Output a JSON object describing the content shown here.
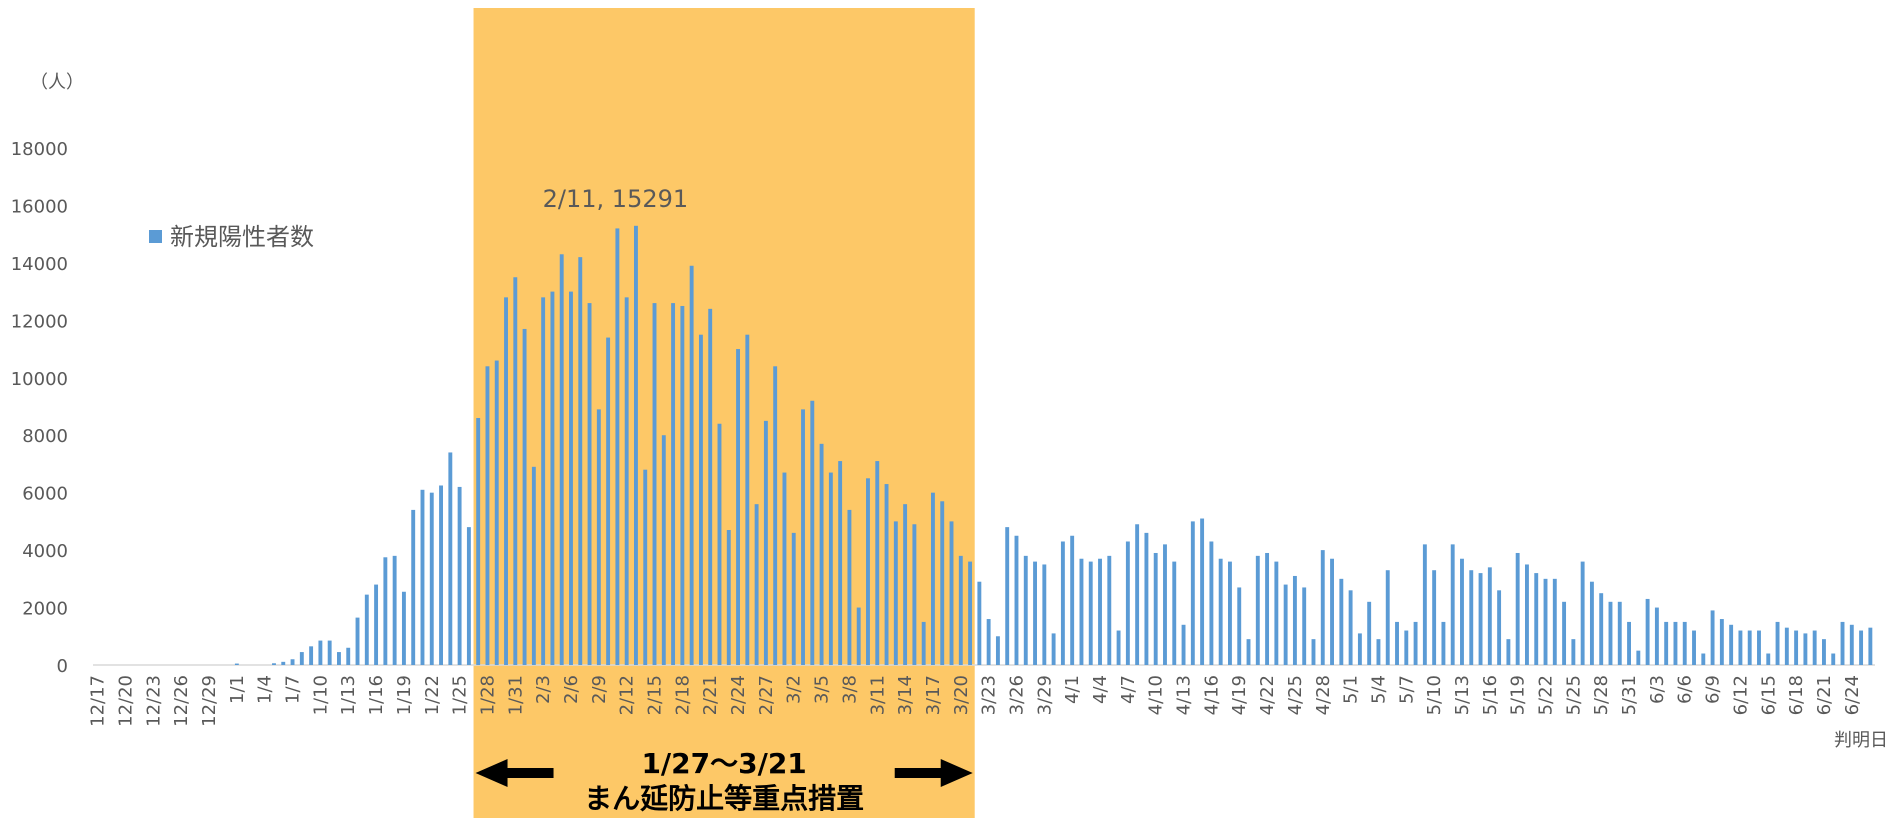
{
  "chart_data": {
    "type": "bar",
    "title": "",
    "ylabel": "（人）",
    "xlabel": "判明日",
    "ylim": [
      0,
      18000
    ],
    "yticks": [
      0,
      2000,
      4000,
      6000,
      8000,
      10000,
      12000,
      14000,
      16000,
      18000
    ],
    "legend": {
      "label": "新規陽性者数",
      "position": "upper-left"
    },
    "x_start": "12/17",
    "x_end": "6/24",
    "xtick_labels": [
      "12/17",
      "12/20",
      "12/23",
      "12/26",
      "12/29",
      "1/1",
      "1/4",
      "1/7",
      "1/10",
      "1/13",
      "1/16",
      "1/19",
      "1/22",
      "1/25",
      "1/28",
      "1/31",
      "2/3",
      "2/6",
      "2/9",
      "2/12",
      "2/15",
      "2/18",
      "2/21",
      "2/24",
      "2/27",
      "3/2",
      "3/5",
      "3/8",
      "3/11",
      "3/14",
      "3/17",
      "3/20",
      "3/23",
      "3/26",
      "3/29",
      "4/1",
      "4/4",
      "4/7",
      "4/10",
      "4/13",
      "4/16",
      "4/19",
      "4/22",
      "4/25",
      "4/28",
      "5/1",
      "5/4",
      "5/7",
      "5/10",
      "5/13",
      "5/16",
      "5/19",
      "5/22",
      "5/25",
      "5/28",
      "5/31",
      "6/3",
      "6/6",
      "6/9",
      "6/12",
      "6/15",
      "6/18",
      "6/21",
      "6/24"
    ],
    "series": [
      {
        "name": "新規陽性者数",
        "values": [
          0,
          0,
          0,
          0,
          0,
          0,
          0,
          0,
          0,
          0,
          0,
          0,
          0,
          0,
          0,
          50,
          0,
          0,
          0,
          60,
          110,
          200,
          450,
          650,
          850,
          850,
          450,
          600,
          1650,
          2450,
          2800,
          3750,
          3800,
          2550,
          5400,
          6100,
          6000,
          6250,
          7400,
          6200,
          4800,
          8600,
          10400,
          10600,
          12800,
          13500,
          11700,
          6900,
          12800,
          13000,
          14300,
          13000,
          14200,
          12600,
          8900,
          11400,
          15200,
          12800,
          15291,
          6800,
          12600,
          8000,
          12600,
          12500,
          13900,
          11500,
          12400,
          8400,
          4700,
          11000,
          11500,
          5600,
          8500,
          10400,
          6700,
          4600,
          8900,
          9200,
          7700,
          6700,
          7100,
          5400,
          2000,
          6500,
          7100,
          6300,
          5000,
          5600,
          4900,
          1500,
          6000,
          5700,
          5000,
          3800,
          3600,
          2900,
          1600,
          1000,
          4800,
          4500,
          3800,
          3600,
          3500,
          1100,
          4300,
          4500,
          3700,
          3600,
          3700,
          3800,
          1200,
          4300,
          4900,
          4600,
          3900,
          4200,
          3600,
          1400,
          5000,
          5100,
          4300,
          3700,
          3600,
          2700,
          900,
          3800,
          3900,
          3600,
          2800,
          3100,
          2700,
          900,
          4000,
          3700,
          3000,
          2600,
          1100,
          2200,
          900,
          3300,
          1500,
          1200,
          1500,
          4200,
          3300,
          1500,
          4200,
          3700,
          3300,
          3200,
          3400,
          2600,
          900,
          3900,
          3500,
          3200,
          3000,
          3000,
          2200,
          900,
          3600,
          2900,
          2500,
          2200,
          2200,
          1500,
          500,
          2300,
          2000,
          1500,
          1500,
          1500,
          1200,
          400,
          1900,
          1600,
          1400,
          1200,
          1200,
          1200,
          400,
          1500,
          1300,
          1200,
          1100,
          1200,
          900,
          400,
          1500,
          1400,
          1200,
          1300
        ]
      }
    ],
    "colors": {
      "bar": "#5b9bd5",
      "highlight": "#fdc867",
      "axis": "#d9d9d9",
      "text": "#595959",
      "arrow": "#000000"
    },
    "annotations": {
      "peak": {
        "label": "2/11, 15291",
        "date": "2/11",
        "value": 15291
      },
      "period": {
        "start": "1/27",
        "end": "3/21",
        "label_dates": "1/27～3/21",
        "label_name": "まん延防止等重点措置"
      }
    }
  }
}
